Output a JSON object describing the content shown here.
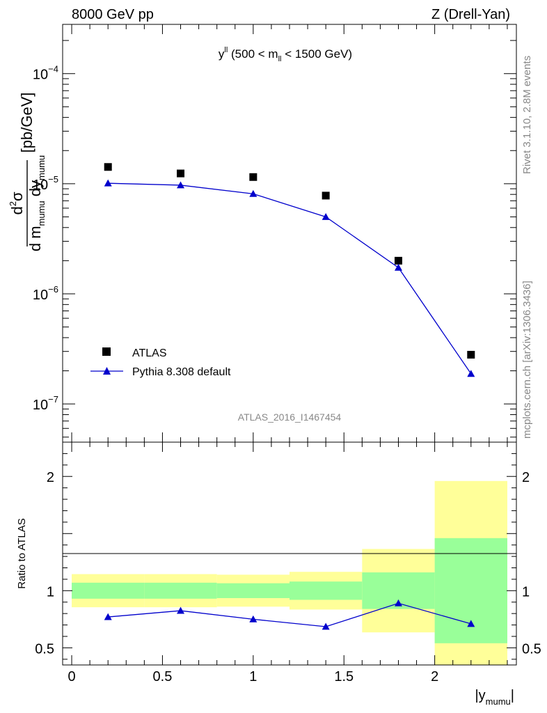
{
  "header": {
    "left": "8000 GeV pp",
    "right": "Z (Drell-Yan)"
  },
  "side": {
    "rivet": "Rivet 3.1.10,  2.8M events",
    "mcplots": "mcplots.cern.ch [arXiv:1306.3436]"
  },
  "colors": {
    "mc": "#0000cc",
    "data": "#000000",
    "band_inner": "#99ff99",
    "band_outer": "#ffff99"
  },
  "chart_data": [
    {
      "type": "scatter",
      "title": "y",
      "title_sup": "ll",
      "title_rest_a": " (500 < m",
      "title_sub": "ll",
      "title_rest_b": " < 1500 GeV)",
      "analysis": "ATLAS_2016_I1467454",
      "ylabel": {
        "num": "d",
        "num_sup": "2",
        "num_sym": "σ",
        "den_a": "d m",
        "den_a_sub": "mumu",
        "den_b": "dy",
        "den_b_sub": "mumu",
        "unit": "[pb/GeV]"
      },
      "ylog": true,
      "ylim": [
        4.5e-08,
        0.00028
      ],
      "xlim": [
        -0.05,
        2.45
      ],
      "yticks": [
        {
          "value": 0.0001,
          "base": "10",
          "exp": "−4"
        },
        {
          "value": 1e-05,
          "base": "10",
          "exp": "−5"
        },
        {
          "value": 1e-06,
          "base": "10",
          "exp": "−6"
        },
        {
          "value": 1e-07,
          "base": "10",
          "exp": "−7"
        }
      ],
      "x": [
        0.2,
        0.6,
        1.0,
        1.4,
        1.8,
        2.2
      ],
      "series": [
        {
          "name": "ATLAS",
          "marker": "square",
          "values": [
            1.42e-05,
            1.24e-05,
            1.15e-05,
            7.8e-06,
            2e-06,
            2.8e-07
          ]
        },
        {
          "name": "Pythia 8.308 default",
          "marker": "triangle",
          "values": [
            1.01e-05,
            9.7e-06,
            8.1e-06,
            5e-06,
            1.73e-06,
            1.88e-07
          ]
        }
      ]
    },
    {
      "type": "scatter",
      "ylabel": "Ratio to ATLAS",
      "xlabel": "|y",
      "xlabel_sub": "mumu",
      "xlabel_end": "|",
      "ylim": [
        0.35,
        2.3
      ],
      "xlim": [
        -0.05,
        2.45
      ],
      "yticks": [
        {
          "value": 0.5,
          "label": "0.5"
        },
        {
          "value": 1,
          "label": "1"
        },
        {
          "value": 2,
          "label": "2"
        }
      ],
      "xticks": [
        {
          "value": 0,
          "label": "0"
        },
        {
          "value": 0.5,
          "label": "0.5"
        },
        {
          "value": 1,
          "label": "1"
        },
        {
          "value": 1.5,
          "label": "1.5"
        },
        {
          "value": 2,
          "label": "2"
        }
      ],
      "bins": [
        {
          "x0": 0.0,
          "x1": 0.4,
          "inner": [
            0.93,
            1.07
          ],
          "outer": [
            0.855,
            1.145
          ]
        },
        {
          "x0": 0.4,
          "x1": 0.8,
          "inner": [
            0.93,
            1.07
          ],
          "outer": [
            0.855,
            1.145
          ]
        },
        {
          "x0": 0.8,
          "x1": 1.2,
          "inner": [
            0.935,
            1.065
          ],
          "outer": [
            0.86,
            1.14
          ]
        },
        {
          "x0": 1.2,
          "x1": 1.6,
          "inner": [
            0.92,
            1.08
          ],
          "outer": [
            0.835,
            1.165
          ]
        },
        {
          "x0": 1.6,
          "x1": 2.0,
          "inner": [
            0.84,
            1.16
          ],
          "outer": [
            0.635,
            1.365
          ]
        },
        {
          "x0": 2.0,
          "x1": 2.4,
          "inner": [
            0.54,
            1.46
          ],
          "outer": [
            0.33,
            1.96
          ]
        }
      ],
      "x": [
        0.2,
        0.6,
        1.0,
        1.4,
        1.8,
        2.2
      ],
      "series": [
        {
          "name": "Pythia 8.308 default",
          "values": [
            0.77,
            0.825,
            0.75,
            0.685,
            0.89,
            0.71
          ]
        }
      ]
    }
  ]
}
